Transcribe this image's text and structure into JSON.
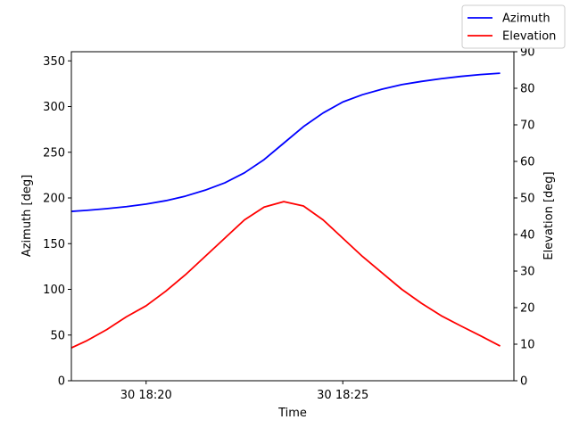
{
  "chart_data": {
    "type": "line",
    "xlabel": "Time",
    "ylabel": "Azimuth [deg]",
    "y2label": "Elevation [deg]",
    "xlim": [
      -1.9,
      9.35
    ],
    "ylim": [
      0,
      360
    ],
    "y2lim": [
      0,
      90
    ],
    "x_ticks": [
      {
        "value": 0,
        "label": "30 18:20"
      },
      {
        "value": 5,
        "label": "30 18:25"
      }
    ],
    "y_ticks": [
      0,
      50,
      100,
      150,
      200,
      250,
      300,
      350
    ],
    "y2_ticks": [
      0,
      10,
      20,
      30,
      40,
      50,
      60,
      70,
      80,
      90
    ],
    "x": [
      -2.0,
      -1.5,
      -1.0,
      -0.5,
      0.0,
      0.5,
      1.0,
      1.5,
      2.0,
      2.5,
      3.0,
      3.5,
      4.0,
      4.5,
      5.0,
      5.5,
      6.0,
      6.5,
      7.0,
      7.5,
      8.0,
      8.5,
      9.0
    ],
    "series": [
      {
        "name": "Azimuth",
        "axis": "left",
        "color": "#0000ff",
        "values": [
          185,
          186.5,
          188.3,
          190.5,
          193.3,
          197,
          202,
          208.5,
          216.5,
          227.5,
          242,
          260,
          278,
          293,
          305,
          313,
          319,
          324,
          327.5,
          330.5,
          333,
          335,
          336.5
        ]
      },
      {
        "name": "Elevation",
        "axis": "right",
        "color": "#ff0000",
        "values": [
          8.5,
          11,
          14,
          17.5,
          20.5,
          24.5,
          29,
          34,
          39,
          44,
          47.5,
          49,
          47.8,
          44,
          39,
          34,
          29.5,
          25,
          21.2,
          17.8,
          15,
          12.3,
          9.5
        ]
      }
    ],
    "legend_position": "top-right",
    "grid": false
  }
}
